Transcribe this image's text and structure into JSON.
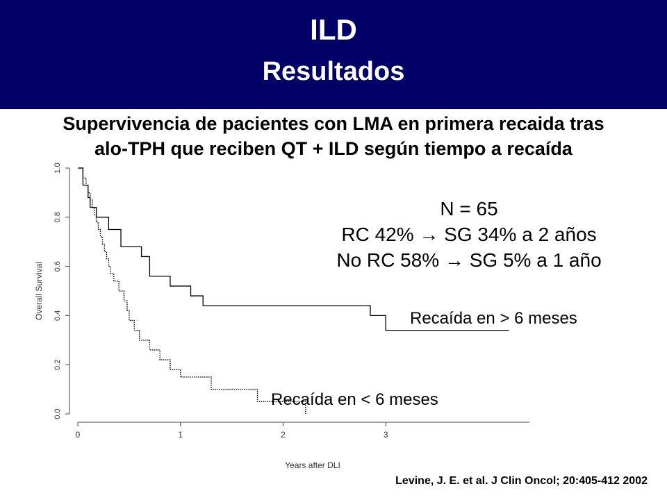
{
  "slide": {
    "title": "ILD",
    "subtitle": "Resultados",
    "heading_line1": "Supervivencia de pacientes con LMA en primera recaida tras",
    "heading_line2": "alo-TPH que reciben QT + ILD según tiempo a recaída",
    "stats": [
      "N = 65",
      "RC 42% → SG 34% a 2 años",
      "No RC 58% →  SG 5% a 1 año"
    ],
    "citation": "Levine, J. E. et al. J Clin Oncol; 20:405-412 2002",
    "colors": {
      "header_bg": "#000066",
      "header_text": "#ffffff"
    }
  },
  "chart_data": {
    "type": "line",
    "step": true,
    "xlabel": "Years after DLI",
    "ylabel": "Overall Survival",
    "xlim": [
      0,
      4.4
    ],
    "ylim": [
      0,
      1.0
    ],
    "xticks": [
      0,
      1,
      2,
      3
    ],
    "yticks": [
      "0.0",
      "0.2",
      "0.4",
      "0.6",
      "0.8",
      "1.0"
    ],
    "series": [
      {
        "name": "Recaída en > 6 meses",
        "line_style": "solid",
        "x": [
          0,
          0.05,
          0.1,
          0.12,
          0.18,
          0.3,
          0.42,
          0.48,
          0.62,
          0.7,
          0.9,
          1.1,
          1.2,
          1.22,
          2.85,
          3.0,
          4.2
        ],
        "y": [
          1.0,
          0.93,
          0.88,
          0.84,
          0.8,
          0.75,
          0.68,
          0.68,
          0.64,
          0.56,
          0.52,
          0.48,
          0.48,
          0.44,
          0.4,
          0.34,
          0.34
        ]
      },
      {
        "name": "Recaída en < 6 meses",
        "line_style": "dotted",
        "x": [
          0,
          0.05,
          0.08,
          0.1,
          0.12,
          0.14,
          0.16,
          0.18,
          0.2,
          0.22,
          0.24,
          0.26,
          0.28,
          0.3,
          0.32,
          0.35,
          0.4,
          0.45,
          0.48,
          0.5,
          0.55,
          0.6,
          0.7,
          0.8,
          0.9,
          1.0,
          1.05,
          1.1,
          1.25,
          1.3,
          1.45,
          1.55,
          1.75,
          2.0,
          2.2,
          2.22
        ],
        "y": [
          1.0,
          0.96,
          0.93,
          0.9,
          0.87,
          0.84,
          0.81,
          0.78,
          0.75,
          0.72,
          0.69,
          0.66,
          0.63,
          0.6,
          0.57,
          0.54,
          0.5,
          0.46,
          0.42,
          0.38,
          0.34,
          0.3,
          0.26,
          0.22,
          0.18,
          0.15,
          0.15,
          0.15,
          0.15,
          0.1,
          0.1,
          0.1,
          0.05,
          0.05,
          0.05,
          0.0
        ]
      }
    ]
  }
}
